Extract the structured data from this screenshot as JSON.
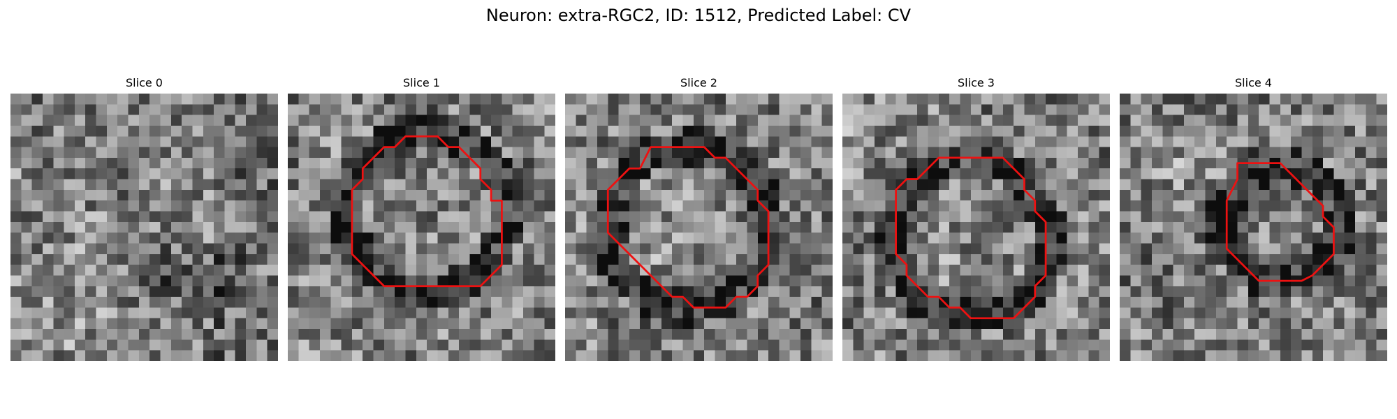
{
  "figure": {
    "title": "Neuron: extra-RGC2, ID: 1512, Predicted Label: CV"
  },
  "contour_color": "#ee1111",
  "slices": [
    {
      "title": "Slice 0",
      "has_contour": false
    },
    {
      "title": "Slice 1",
      "has_contour": true
    },
    {
      "title": "Slice 2",
      "has_contour": true
    },
    {
      "title": "Slice 3",
      "has_contour": true
    },
    {
      "title": "Slice 4",
      "has_contour": true
    }
  ]
}
